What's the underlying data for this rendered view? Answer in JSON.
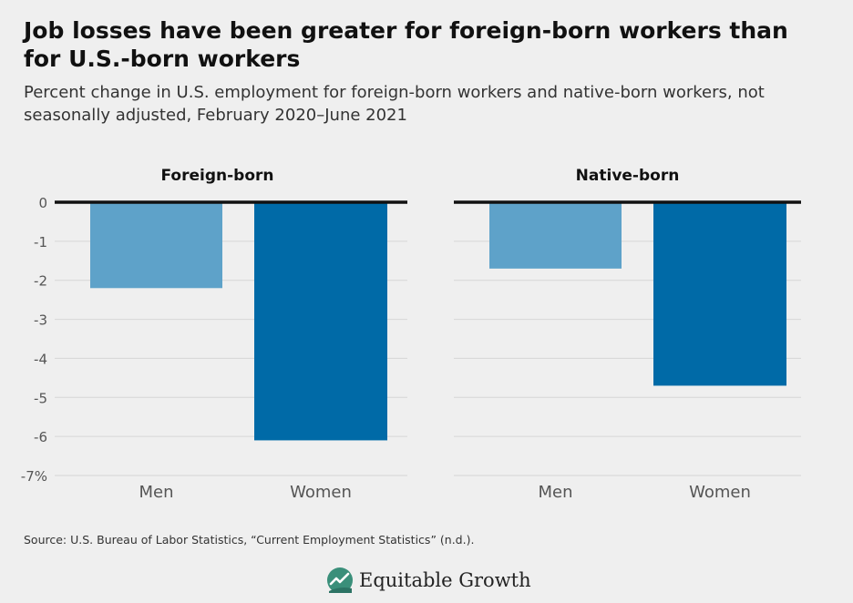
{
  "title": "Job losses have been greater for foreign-born workers than for U.S.-born workers",
  "subtitle": "Percent change in U.S. employment for foreign-born workers and native-born workers, not seasonally adjusted, February 2020–June 2021",
  "source": "Source: U.S. Bureau of Labor Statistics, “Current Employment Statistics” (n.d.).",
  "brand": {
    "name": "Equitable Growth",
    "icon": "equitable-growth-logo-icon"
  },
  "colors": {
    "men": "#5ea2c9",
    "women": "#006aa7",
    "axis": "#111111",
    "grid": "#d6d6d6"
  },
  "chart_data": [
    {
      "type": "bar",
      "title": "Foreign-born",
      "categories": [
        "Men",
        "Women"
      ],
      "values": [
        -2.2,
        -6.1
      ],
      "ylim": [
        -7,
        0
      ],
      "yticks": [
        "0",
        "-1",
        "-2",
        "-3",
        "-4",
        "-5",
        "-6",
        "-7%"
      ],
      "grid": true
    },
    {
      "type": "bar",
      "title": "Native-born",
      "categories": [
        "Men",
        "Women"
      ],
      "values": [
        -1.7,
        -4.7
      ],
      "ylim": [
        -7,
        0
      ],
      "grid": true
    }
  ]
}
